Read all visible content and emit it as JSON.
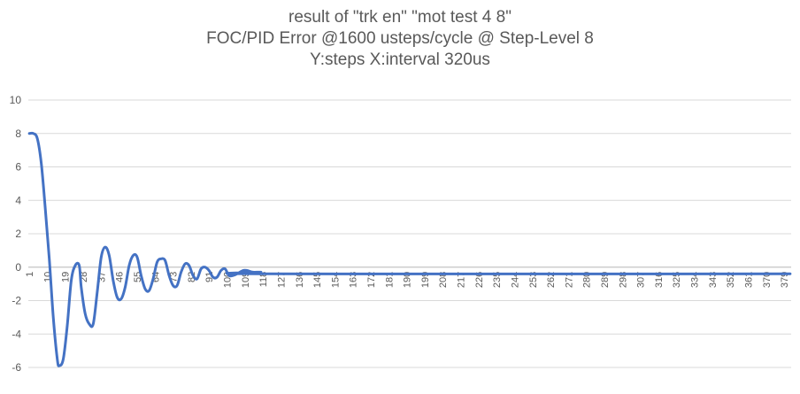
{
  "chart_data": {
    "type": "line",
    "title_lines": [
      "result of \"trk en\" \"mot test 4 8\"",
      "FOC/PID Error @1600 usteps/cycle @ Step-Level 8",
      "Y:steps X:interval 320us"
    ],
    "xlabel": "",
    "ylabel": "",
    "ylim": [
      -6,
      10
    ],
    "y_ticks": [
      -6,
      -4,
      -2,
      0,
      2,
      4,
      6,
      8,
      10
    ],
    "x_count": 382,
    "x_tick_labels": [
      1,
      10,
      19,
      28,
      37,
      46,
      55,
      64,
      73,
      82,
      91,
      100,
      109,
      118,
      127,
      136,
      145,
      154,
      163,
      172,
      181,
      190,
      199,
      208,
      217,
      226,
      235,
      244,
      253,
      262,
      271,
      280,
      289,
      298,
      307,
      316,
      325,
      334,
      343,
      352,
      361,
      370,
      379
    ],
    "grid": "horizontal",
    "legend": "none",
    "line_color": "#4472C4",
    "series": [
      {
        "key_points": [
          [
            1,
            8
          ],
          [
            3,
            8
          ],
          [
            5,
            7.7
          ],
          [
            7,
            6.2
          ],
          [
            9,
            3.5
          ],
          [
            11,
            0.5
          ],
          [
            13,
            -3
          ],
          [
            15,
            -5.5
          ],
          [
            16,
            -5.9
          ],
          [
            18,
            -5.5
          ],
          [
            20,
            -3.5
          ],
          [
            22,
            -0.8
          ],
          [
            24,
            0.1
          ],
          [
            26,
            0.1
          ],
          [
            27,
            -1.2
          ],
          [
            29,
            -2.8
          ],
          [
            31,
            -3.4
          ],
          [
            33,
            -3.4
          ],
          [
            35,
            -1.5
          ],
          [
            37,
            0.6
          ],
          [
            39,
            1.2
          ],
          [
            41,
            0.7
          ],
          [
            43,
            -0.8
          ],
          [
            45,
            -1.8
          ],
          [
            47,
            -1.9
          ],
          [
            49,
            -1.2
          ],
          [
            51,
            0.1
          ],
          [
            53,
            0.7
          ],
          [
            55,
            0.6
          ],
          [
            57,
            -0.5
          ],
          [
            59,
            -1.3
          ],
          [
            61,
            -1.4
          ],
          [
            63,
            -0.7
          ],
          [
            65,
            0.3
          ],
          [
            67,
            0.5
          ],
          [
            69,
            0.4
          ],
          [
            71,
            -0.5
          ],
          [
            73,
            -1.1
          ],
          [
            75,
            -1.1
          ],
          [
            77,
            -0.3
          ],
          [
            79,
            0.2
          ],
          [
            81,
            0.1
          ],
          [
            83,
            -0.5
          ],
          [
            85,
            -0.7
          ],
          [
            87,
            -0.1
          ],
          [
            89,
            0.0
          ],
          [
            91,
            -0.2
          ],
          [
            93,
            -0.6
          ],
          [
            95,
            -0.6
          ],
          [
            97,
            -0.2
          ],
          [
            99,
            -0.1
          ],
          [
            101,
            -0.5
          ],
          [
            103,
            -0.5
          ],
          [
            105,
            -0.4
          ],
          [
            108,
            -0.2
          ],
          [
            110,
            -0.2
          ],
          [
            113,
            -0.3
          ],
          [
            117,
            -0.3
          ],
          [
            120,
            -0.4
          ],
          [
            382,
            -0.4
          ]
        ]
      }
    ]
  }
}
